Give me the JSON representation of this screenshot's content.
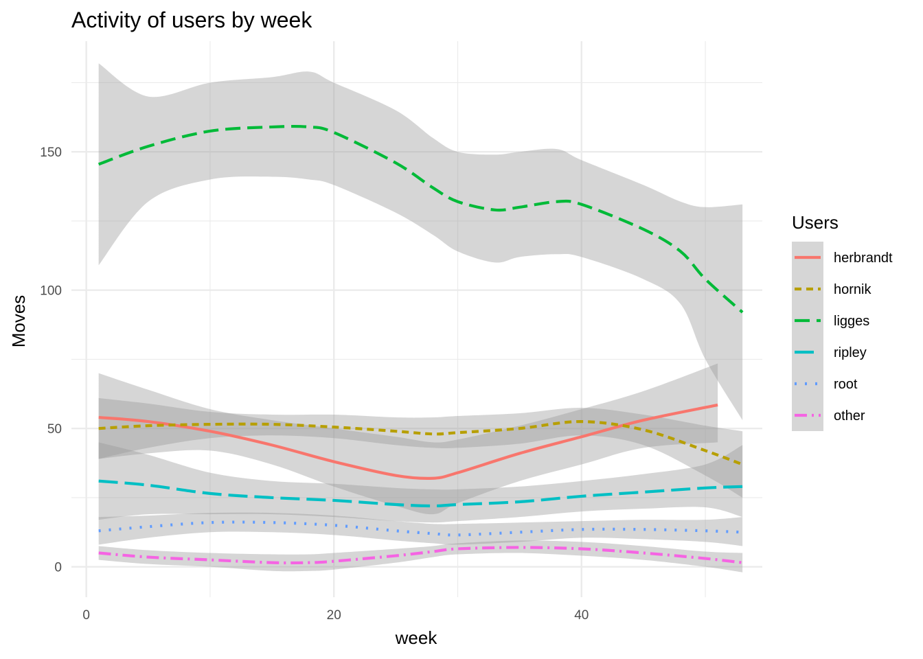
{
  "chart_data": {
    "type": "line",
    "title": "Activity of users by week",
    "xlabel": "week",
    "ylabel": "Moves",
    "xlim": [
      -1.2,
      54.6
    ],
    "ylim": [
      -11,
      190
    ],
    "x_ticks": [
      0,
      20,
      40
    ],
    "x_tick_labels": [
      "0",
      "20",
      "40"
    ],
    "x_minor_ticks": [
      10,
      30,
      50
    ],
    "y_ticks": [
      0,
      50,
      100,
      150
    ],
    "y_tick_labels": [
      "0",
      "50",
      "100",
      "150"
    ],
    "y_minor_ticks": [
      25,
      75,
      125,
      175
    ],
    "grid": true,
    "legend": {
      "title": "Users",
      "position": "right"
    },
    "band_color": "#999999",
    "series": [
      {
        "name": "herbrandt",
        "color": "#F8766D",
        "dash": "solid",
        "x": [
          1,
          5,
          10,
          15,
          20,
          25,
          28,
          30,
          35,
          40,
          45,
          51
        ],
        "y": [
          54,
          52.5,
          49,
          44,
          38,
          33,
          32,
          34,
          41,
          47,
          53,
          58.5
        ],
        "upper": [
          70,
          64,
          57,
          53,
          50,
          47,
          45,
          46,
          51,
          57,
          63.5,
          73.5
        ],
        "lower": [
          39,
          41,
          42,
          37,
          29,
          22,
          19,
          23,
          31,
          37,
          43,
          45
        ]
      },
      {
        "name": "hornik",
        "color": "#B79F00",
        "dash": "10,7",
        "x": [
          1,
          5,
          10,
          15,
          20,
          25,
          28,
          30,
          35,
          40,
          45,
          50,
          53
        ],
        "y": [
          50,
          51,
          51.5,
          51.5,
          50.5,
          49,
          48,
          48.5,
          50,
          52.5,
          49.5,
          42,
          37
        ],
        "upper": [
          61,
          59,
          56,
          55,
          55,
          54,
          54,
          54.5,
          55.5,
          57.5,
          55,
          51,
          49
        ],
        "lower": [
          39,
          43,
          46.5,
          47.5,
          46.5,
          44,
          43,
          43,
          44.5,
          47.5,
          44,
          33,
          25
        ]
      },
      {
        "name": "ligges",
        "color": "#00BA38",
        "dash": "22,10",
        "x": [
          1,
          5,
          10,
          15,
          18,
          20,
          25,
          28,
          30,
          33,
          35,
          38,
          40,
          45,
          48,
          50,
          53
        ],
        "y": [
          145.5,
          152,
          157.5,
          159,
          159,
          157,
          146,
          137,
          132,
          129,
          130,
          132,
          131,
          122,
          114,
          104,
          92
        ],
        "upper": [
          182,
          170,
          175,
          177,
          179,
          175,
          165,
          155,
          150,
          149,
          150,
          151,
          147,
          138,
          132,
          130,
          131
        ],
        "lower": [
          109,
          132,
          140,
          141,
          140,
          138,
          128,
          120,
          114,
          110,
          112,
          113,
          112,
          104,
          95,
          75,
          53
        ]
      },
      {
        "name": "ripley",
        "color": "#00BFC4",
        "dash": "28,10",
        "x": [
          1,
          5,
          10,
          15,
          20,
          25,
          28,
          30,
          35,
          40,
          45,
          50,
          53
        ],
        "y": [
          31,
          29.5,
          26.5,
          25,
          24,
          22.5,
          22,
          22.5,
          23.5,
          25.5,
          27,
          28.5,
          29
        ],
        "upper": [
          45,
          40.5,
          34,
          31,
          30,
          28.5,
          28,
          28,
          29,
          31,
          33.5,
          37,
          44
        ],
        "lower": [
          17,
          19,
          19,
          19,
          18,
          16.5,
          16,
          16.5,
          18,
          20,
          21,
          21.5,
          18
        ]
      },
      {
        "name": "root",
        "color": "#619CFF",
        "dash": "3,12",
        "x": [
          1,
          5,
          10,
          15,
          20,
          25,
          28,
          30,
          35,
          40,
          45,
          50,
          53
        ],
        "y": [
          13,
          14.5,
          16,
          16,
          15,
          13,
          12,
          11.5,
          12.5,
          13.5,
          13.5,
          13,
          12.5
        ],
        "upper": [
          18,
          18.5,
          19.5,
          19.5,
          18.5,
          16.5,
          15.5,
          15.5,
          16,
          16.5,
          17,
          17,
          18
        ],
        "lower": [
          8,
          10.5,
          12.5,
          12.5,
          11.5,
          9.5,
          8.5,
          8,
          9,
          10.5,
          10,
          9,
          7.5
        ]
      },
      {
        "name": "other",
        "color": "#F564E3",
        "dash": "18,7,3,7",
        "x": [
          1,
          5,
          10,
          15,
          18,
          20,
          25,
          28,
          30,
          35,
          40,
          45,
          50,
          53
        ],
        "y": [
          5,
          3.5,
          2.5,
          1.5,
          1.5,
          2,
          4,
          5.5,
          6.5,
          7,
          6.5,
          5,
          3,
          1.5
        ],
        "upper": [
          7.5,
          6,
          5,
          4.5,
          4.5,
          5,
          6.5,
          7.5,
          8.5,
          9.5,
          9,
          7.5,
          5.5,
          5
        ],
        "lower": [
          2.5,
          1,
          0,
          -1.5,
          -1.5,
          -1,
          1.5,
          3.5,
          4.5,
          5,
          4,
          2.5,
          0,
          -2
        ]
      }
    ]
  }
}
